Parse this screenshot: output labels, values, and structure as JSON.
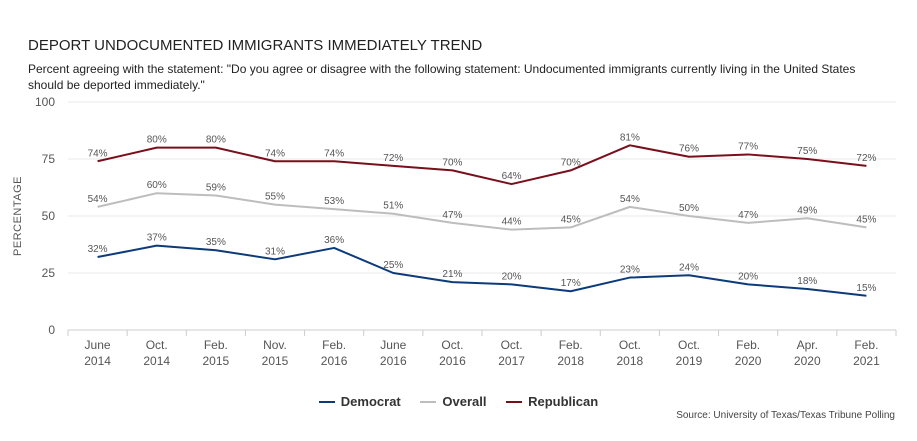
{
  "chart_data": {
    "type": "line",
    "title": "DEPORT UNDOCUMENTED IMMIGRANTS IMMEDIATELY TREND",
    "subtitle": "Percent agreeing with the statement: \"Do you agree or disagree with the following statement: Undocumented immigrants currently living in the United States should be deported immediately.\"",
    "ylabel": "PERCENTAGE",
    "ylim": [
      0,
      100
    ],
    "yticks": [
      0,
      25,
      50,
      75,
      100
    ],
    "categories": [
      [
        "June",
        "2014"
      ],
      [
        "Oct.",
        "2014"
      ],
      [
        "Feb.",
        "2015"
      ],
      [
        "Nov.",
        "2015"
      ],
      [
        "Feb.",
        "2016"
      ],
      [
        "June",
        "2016"
      ],
      [
        "Oct.",
        "2016"
      ],
      [
        "Oct.",
        "2017"
      ],
      [
        "Feb.",
        "2018"
      ],
      [
        "Oct.",
        "2018"
      ],
      [
        "Oct.",
        "2019"
      ],
      [
        "Feb.",
        "2020"
      ],
      [
        "Apr.",
        "2020"
      ],
      [
        "Feb.",
        "2021"
      ]
    ],
    "series": [
      {
        "name": "Democrat",
        "color": "#0d3a7a",
        "values": [
          32,
          37,
          35,
          31,
          36,
          25,
          21,
          20,
          17,
          23,
          24,
          20,
          18,
          15
        ],
        "labels": [
          "32%",
          "37%",
          "35%",
          "31%",
          "36%",
          "25%",
          "21%",
          "20%",
          "17%",
          "23%",
          "24%",
          "20%",
          "18%",
          "15%"
        ]
      },
      {
        "name": "Overall",
        "color": "#bdbdbd",
        "values": [
          54,
          60,
          59,
          55,
          53,
          51,
          47,
          44,
          45,
          54,
          50,
          47,
          49,
          45
        ],
        "labels": [
          "54%",
          "60%",
          "59%",
          "55%",
          "53%",
          "51%",
          "47%",
          "44%",
          "45%",
          "54%",
          "50%",
          "47%",
          "49%",
          "45%"
        ]
      },
      {
        "name": "Republican",
        "color": "#7a0f1c",
        "values": [
          74,
          80,
          80,
          74,
          74,
          72,
          70,
          64,
          70,
          81,
          76,
          77,
          75,
          72
        ],
        "labels": [
          "74%",
          "80%",
          "80%",
          "74%",
          "74%",
          "72%",
          "70%",
          "64%",
          "70%",
          "81%",
          "76%",
          "77%",
          "75%",
          "72%"
        ]
      }
    ],
    "grid": true,
    "legend_position": "bottom-center",
    "source": "Source: University of Texas/Texas Tribune Polling"
  }
}
